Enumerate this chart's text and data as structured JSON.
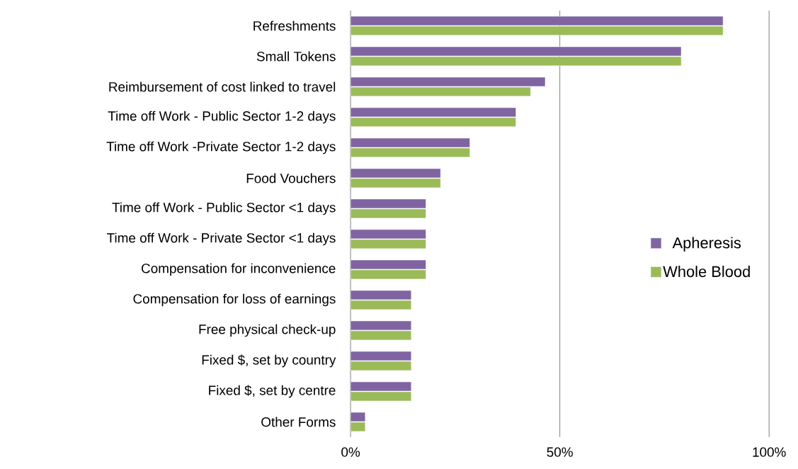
{
  "chart_data": {
    "type": "bar",
    "orientation": "horizontal",
    "categories": [
      "Refreshments",
      "Small Tokens",
      "Reimbursement of cost linked to travel",
      "Time off Work - Public Sector 1-2 days",
      "Time off Work -Private Sector 1-2 days",
      "Food Vouchers",
      "Time off Work - Public Sector <1 days",
      "Time off Work - Private Sector <1 days",
      "Compensation for inconvenience",
      "Compensation for loss of earnings",
      "Free physical check-up",
      "Fixed $, set by country",
      "Fixed $, set by centre",
      "Other Forms"
    ],
    "series": [
      {
        "name": "Apheresis",
        "color": "#8064a2",
        "values": [
          89,
          79,
          46.5,
          39.5,
          28.5,
          21.5,
          18,
          18,
          18,
          14.5,
          14.5,
          14.5,
          14.5,
          3.5
        ]
      },
      {
        "name": "Whole Blood",
        "color": "#9bbb59",
        "values": [
          89,
          79,
          43,
          39.5,
          28.5,
          21.5,
          18,
          18,
          18,
          14.5,
          14.5,
          14.5,
          14.5,
          3.5
        ]
      }
    ],
    "xlim": [
      0,
      100
    ],
    "xticks": [
      {
        "value": 0,
        "label": "0%"
      },
      {
        "value": 50,
        "label": "50%"
      },
      {
        "value": 100,
        "label": "100%"
      }
    ],
    "grid": "x",
    "legend": "right"
  }
}
